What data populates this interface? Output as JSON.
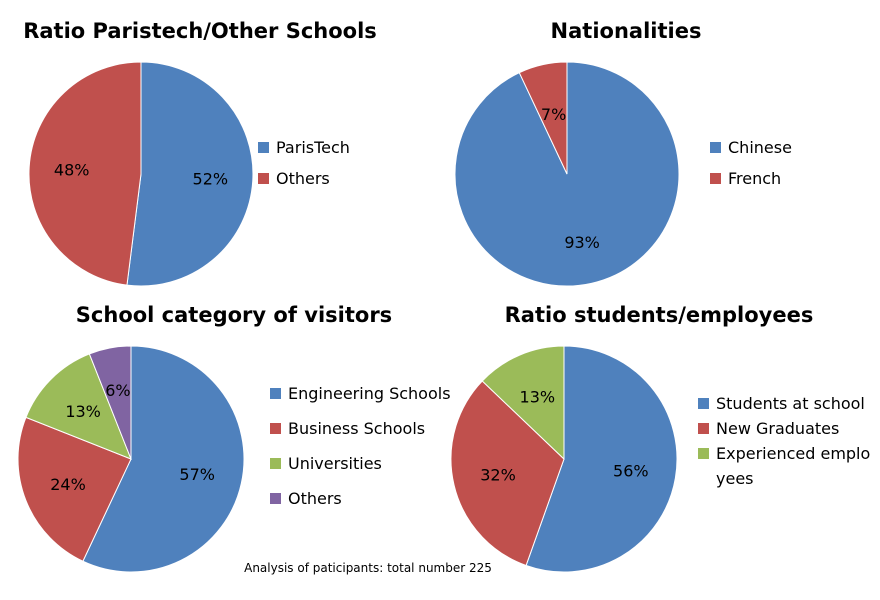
{
  "footnote": "Analysis of paticipants: total number 225",
  "chart_data": [
    {
      "type": "pie",
      "title": "Ratio Paristech/Other Schools",
      "legend": "right",
      "slices": [
        {
          "label": "ParisTech",
          "value": 52,
          "display": "52%",
          "color": "#4F81BD"
        },
        {
          "label": "Others",
          "value": 48,
          "display": "48%",
          "color": "#C0504D"
        }
      ]
    },
    {
      "type": "pie",
      "title": "Nationalities",
      "legend": "right",
      "slices": [
        {
          "label": "Chinese",
          "value": 93,
          "display": "93%",
          "color": "#4F81BD"
        },
        {
          "label": "French",
          "value": 7,
          "display": "7%",
          "color": "#C0504D"
        }
      ]
    },
    {
      "type": "pie",
      "title": "School category of visitors",
      "legend": "right",
      "slices": [
        {
          "label": "Engineering Schools",
          "value": 57,
          "display": "57%",
          "color": "#4F81BD"
        },
        {
          "label": "Business Schools",
          "value": 24,
          "display": "24%",
          "color": "#C0504D"
        },
        {
          "label": "Universities",
          "value": 13,
          "display": "13%",
          "color": "#9BBB59"
        },
        {
          "label": "Others",
          "value": 6,
          "display": "6%",
          "color": "#8064A2"
        }
      ]
    },
    {
      "type": "pie",
      "title": "Ratio students/employees",
      "legend": "right",
      "slices": [
        {
          "label": "Students at school",
          "value": 56,
          "display": "56%",
          "color": "#4F81BD"
        },
        {
          "label": "New Graduates",
          "value": 32,
          "display": "32%",
          "color": "#C0504D"
        },
        {
          "label": "Experienced employees",
          "value": 13,
          "display": "13%",
          "color": "#9BBB59"
        }
      ]
    }
  ]
}
